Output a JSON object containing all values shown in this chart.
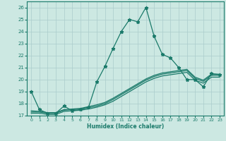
{
  "xlabel": "Humidex (Indice chaleur)",
  "xlim": [
    -0.5,
    23.5
  ],
  "ylim": [
    17,
    26.5
  ],
  "yticks": [
    17,
    18,
    19,
    20,
    21,
    22,
    23,
    24,
    25,
    26
  ],
  "xticks": [
    0,
    1,
    2,
    3,
    4,
    5,
    6,
    7,
    8,
    9,
    10,
    11,
    12,
    13,
    14,
    15,
    16,
    17,
    18,
    19,
    20,
    21,
    22,
    23
  ],
  "background_color": "#cce8e2",
  "grid_color": "#aacccc",
  "line_color": "#1a7a6a",
  "lines": [
    {
      "x": [
        0,
        1,
        2,
        3,
        4,
        5,
        6,
        7,
        8,
        9,
        10,
        11,
        12,
        13,
        14,
        15,
        16,
        17,
        18,
        19,
        20,
        21,
        22,
        23
      ],
      "y": [
        19.0,
        17.5,
        17.2,
        17.2,
        17.8,
        17.4,
        17.5,
        17.7,
        19.8,
        21.1,
        22.6,
        24.0,
        25.0,
        24.8,
        26.0,
        23.6,
        22.1,
        21.8,
        21.0,
        20.0,
        20.0,
        19.4,
        20.5,
        20.4
      ],
      "marker": "*",
      "marker_size": 3.5
    },
    {
      "x": [
        0,
        1,
        2,
        3,
        4,
        5,
        6,
        7,
        8,
        9,
        10,
        11,
        12,
        13,
        14,
        15,
        16,
        17,
        18,
        19,
        20,
        21,
        22,
        23
      ],
      "y": [
        17.3,
        17.3,
        17.2,
        17.2,
        17.45,
        17.5,
        17.55,
        17.65,
        17.8,
        18.0,
        18.35,
        18.75,
        19.15,
        19.55,
        19.95,
        20.25,
        20.45,
        20.55,
        20.65,
        20.75,
        20.1,
        19.85,
        20.35,
        20.35
      ],
      "marker": null,
      "marker_size": 0
    },
    {
      "x": [
        0,
        1,
        2,
        3,
        4,
        5,
        6,
        7,
        8,
        9,
        10,
        11,
        12,
        13,
        14,
        15,
        16,
        17,
        18,
        19,
        20,
        21,
        22,
        23
      ],
      "y": [
        17.2,
        17.2,
        17.1,
        17.1,
        17.35,
        17.4,
        17.45,
        17.55,
        17.7,
        17.9,
        18.2,
        18.6,
        19.0,
        19.4,
        19.8,
        20.1,
        20.3,
        20.4,
        20.5,
        20.6,
        19.95,
        19.7,
        20.2,
        20.2
      ],
      "marker": null,
      "marker_size": 0
    },
    {
      "x": [
        0,
        1,
        2,
        3,
        4,
        5,
        6,
        7,
        8,
        9,
        10,
        11,
        12,
        13,
        14,
        15,
        16,
        17,
        18,
        19,
        20,
        21,
        22,
        23
      ],
      "y": [
        17.4,
        17.35,
        17.25,
        17.25,
        17.5,
        17.55,
        17.6,
        17.75,
        17.9,
        18.1,
        18.45,
        18.85,
        19.25,
        19.65,
        20.05,
        20.35,
        20.55,
        20.65,
        20.75,
        20.85,
        20.2,
        19.95,
        20.45,
        20.45
      ],
      "marker": null,
      "marker_size": 0
    }
  ]
}
